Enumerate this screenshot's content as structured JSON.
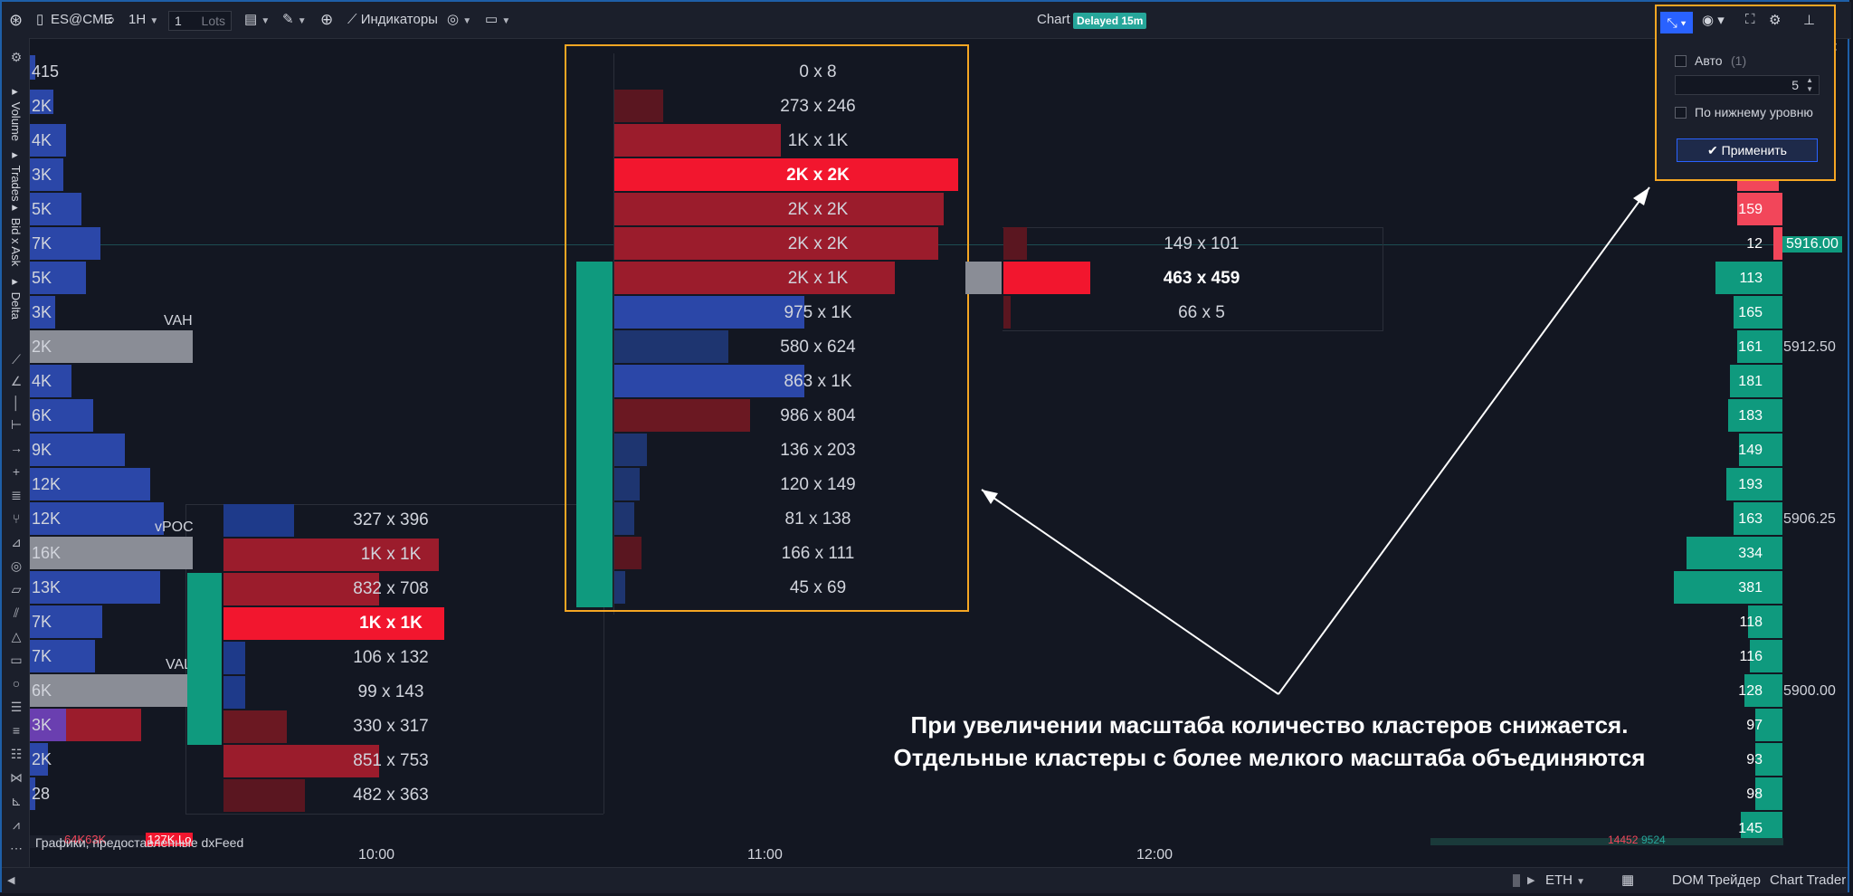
{
  "toolbar": {
    "symbol": "ES@CME",
    "timeframe": "1H",
    "quantity": "1",
    "quantity_units": "Lots",
    "indicators_label": "Индикаторы",
    "chart_label": "Chart",
    "delayed_badge": "Delayed 15m"
  },
  "left_panel_labels": [
    "Volume",
    "Trades",
    "Bid x Ask",
    "Delta"
  ],
  "left_profile": {
    "values": [
      "415",
      "2K",
      "4K",
      "3K",
      "5K",
      "7K",
      "5K",
      "3K",
      "2K",
      "4K",
      "6K",
      "9K",
      "12K",
      "12K",
      "16K",
      "13K",
      "7K",
      "7K",
      "6K",
      "3K",
      "2K",
      "28"
    ],
    "vah_label": "VAH",
    "vpoc_label": "vPOC",
    "val_label": "VAL"
  },
  "cluster_1000": [
    "327 x 396",
    "1K x 1K",
    "832 x 708",
    "1K x 1K",
    "106 x 132",
    "99 x 143",
    "330 x 317",
    "851 x 753",
    "482 x 363"
  ],
  "cluster_1100": [
    "0 x 8",
    "273 x 246",
    "1K x 1K",
    "2K x 2K",
    "2K x 2K",
    "2K x 2K",
    "2K x 1K",
    "975 x 1K",
    "580 x 624",
    "863 x 1K",
    "986 x 804",
    "136 x 203",
    "120 x 149",
    "81 x 138",
    "166 x 111",
    "45 x 69"
  ],
  "cluster_1200": [
    "149 x 101",
    "463 x 459",
    "66 x 5"
  ],
  "right_profile": [
    "159",
    "12",
    "113",
    "165",
    "161",
    "181",
    "183",
    "149",
    "193",
    "163",
    "334",
    "381",
    "118",
    "116",
    "128",
    "97",
    "93",
    "98",
    "145"
  ],
  "prices": {
    "current": "5916.00",
    "p1": "5912.50",
    "p2": "5906.25",
    "p3": "5900.00"
  },
  "time_axis": [
    "10:00",
    "11:00",
    "12:00"
  ],
  "bottom_strip": {
    "vals": "64K63K",
    "red_val": "127K Lo",
    "right_vals": "14452",
    "right_vals2": "9524"
  },
  "footer_note": "Графики, предоставленные dxFeed",
  "annotation": {
    "line1": "При увеличении масштаба количество кластеров снижается.",
    "line2": "Отдельные кластеры с более мелкого масштаба объединяются"
  },
  "popup": {
    "auto_label": "Авто",
    "auto_count": "(1)",
    "value": "5",
    "lower_level_label": "По нижнему уровню",
    "apply_label": "Применить"
  },
  "bottom_bar": {
    "session": "ETH",
    "dom_trader": "DOM Трейдер",
    "chart_trader": "Chart Trader"
  },
  "colors": {
    "bg": "#131722",
    "bid_blue": "#2b47a8",
    "ask_red": "#9b1c2c",
    "bright_red": "#f2162e",
    "teal": "#0f9a7e",
    "grey_level": "#8a8d96",
    "highlight": "#f5a623"
  }
}
